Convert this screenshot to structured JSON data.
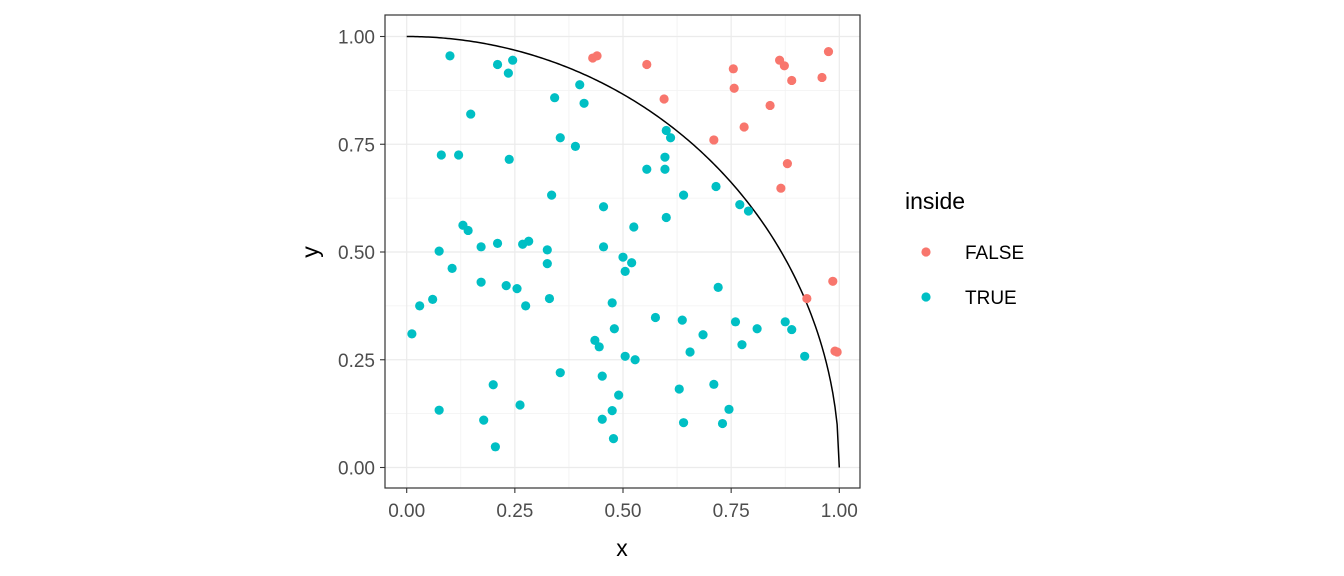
{
  "chart_data": {
    "type": "scatter",
    "title": "",
    "xlabel": "x",
    "ylabel": "y",
    "xlim": [
      0,
      1
    ],
    "ylim": [
      0,
      1
    ],
    "x_ticks": [
      "0.00",
      "0.25",
      "0.50",
      "0.75",
      "1.00"
    ],
    "y_ticks": [
      "0.00",
      "0.25",
      "0.50",
      "0.75",
      "1.00"
    ],
    "grid": true,
    "legend_position": "right",
    "curve": "quarter-circle x^2 + y^2 = 1",
    "legend": {
      "title": "inside",
      "items": [
        {
          "label": "FALSE",
          "color": "#F8766D"
        },
        {
          "label": "TRUE",
          "color": "#00BFC4"
        }
      ]
    },
    "series": [
      {
        "name": "FALSE",
        "color": "#F8766D",
        "points": [
          [
            0.43,
            0.95
          ],
          [
            0.44,
            0.955
          ],
          [
            0.555,
            0.935
          ],
          [
            0.595,
            0.855
          ],
          [
            0.71,
            0.76
          ],
          [
            0.755,
            0.925
          ],
          [
            0.757,
            0.88
          ],
          [
            0.78,
            0.79
          ],
          [
            0.84,
            0.84
          ],
          [
            0.862,
            0.945
          ],
          [
            0.873,
            0.932
          ],
          [
            0.865,
            0.648
          ],
          [
            0.88,
            0.705
          ],
          [
            0.89,
            0.898
          ],
          [
            0.96,
            0.905
          ],
          [
            0.975,
            0.965
          ],
          [
            0.925,
            0.392
          ],
          [
            0.985,
            0.432
          ],
          [
            0.99,
            0.27
          ],
          [
            0.995,
            0.268
          ]
        ]
      },
      {
        "name": "TRUE",
        "color": "#00BFC4",
        "points": [
          [
            0.1,
            0.955
          ],
          [
            0.21,
            0.935
          ],
          [
            0.235,
            0.915
          ],
          [
            0.245,
            0.945
          ],
          [
            0.148,
            0.82
          ],
          [
            0.342,
            0.858
          ],
          [
            0.4,
            0.888
          ],
          [
            0.41,
            0.845
          ],
          [
            0.08,
            0.725
          ],
          [
            0.12,
            0.725
          ],
          [
            0.237,
            0.715
          ],
          [
            0.355,
            0.765
          ],
          [
            0.39,
            0.745
          ],
          [
            0.6,
            0.782
          ],
          [
            0.61,
            0.765
          ],
          [
            0.555,
            0.692
          ],
          [
            0.597,
            0.72
          ],
          [
            0.597,
            0.692
          ],
          [
            0.715,
            0.652
          ],
          [
            0.335,
            0.632
          ],
          [
            0.64,
            0.632
          ],
          [
            0.455,
            0.605
          ],
          [
            0.77,
            0.61
          ],
          [
            0.79,
            0.595
          ],
          [
            0.525,
            0.558
          ],
          [
            0.6,
            0.58
          ],
          [
            0.13,
            0.562
          ],
          [
            0.142,
            0.55
          ],
          [
            0.075,
            0.502
          ],
          [
            0.172,
            0.512
          ],
          [
            0.21,
            0.52
          ],
          [
            0.268,
            0.518
          ],
          [
            0.282,
            0.525
          ],
          [
            0.325,
            0.505
          ],
          [
            0.455,
            0.512
          ],
          [
            0.5,
            0.488
          ],
          [
            0.52,
            0.475
          ],
          [
            0.105,
            0.462
          ],
          [
            0.505,
            0.455
          ],
          [
            0.325,
            0.473
          ],
          [
            0.172,
            0.43
          ],
          [
            0.23,
            0.422
          ],
          [
            0.255,
            0.415
          ],
          [
            0.72,
            0.418
          ],
          [
            0.03,
            0.375
          ],
          [
            0.06,
            0.39
          ],
          [
            0.275,
            0.375
          ],
          [
            0.33,
            0.392
          ],
          [
            0.475,
            0.382
          ],
          [
            0.575,
            0.348
          ],
          [
            0.637,
            0.342
          ],
          [
            0.76,
            0.338
          ],
          [
            0.875,
            0.338
          ],
          [
            0.012,
            0.31
          ],
          [
            0.48,
            0.322
          ],
          [
            0.685,
            0.308
          ],
          [
            0.81,
            0.322
          ],
          [
            0.89,
            0.32
          ],
          [
            0.435,
            0.295
          ],
          [
            0.445,
            0.28
          ],
          [
            0.505,
            0.258
          ],
          [
            0.528,
            0.25
          ],
          [
            0.655,
            0.268
          ],
          [
            0.775,
            0.285
          ],
          [
            0.92,
            0.258
          ],
          [
            0.355,
            0.22
          ],
          [
            0.452,
            0.212
          ],
          [
            0.2,
            0.192
          ],
          [
            0.63,
            0.182
          ],
          [
            0.71,
            0.193
          ],
          [
            0.49,
            0.168
          ],
          [
            0.262,
            0.145
          ],
          [
            0.075,
            0.133
          ],
          [
            0.475,
            0.132
          ],
          [
            0.745,
            0.135
          ],
          [
            0.178,
            0.11
          ],
          [
            0.452,
            0.112
          ],
          [
            0.64,
            0.104
          ],
          [
            0.73,
            0.102
          ],
          [
            0.205,
            0.048
          ],
          [
            0.478,
            0.067
          ]
        ]
      }
    ]
  }
}
